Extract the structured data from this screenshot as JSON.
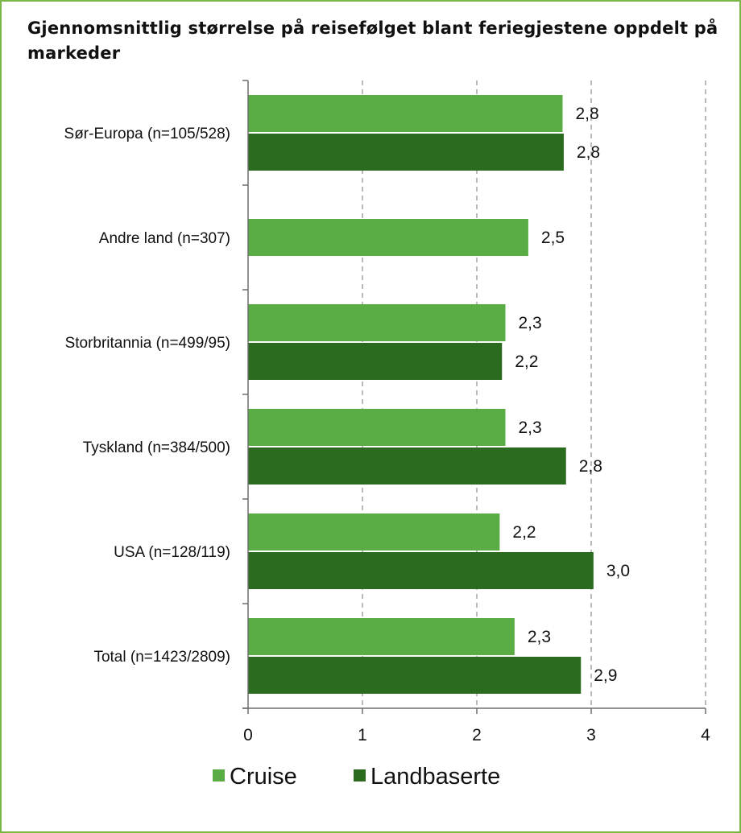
{
  "chart_data": {
    "type": "bar",
    "orientation": "horizontal",
    "title": "Gjennomsnittlig størrelse på reisefølget blant feriegjestene oppdelt på markeder",
    "categories": [
      "Sør-Europa (n=105/528)",
      "Andre land (n=307)",
      "Storbritannia (n=499/95)",
      "Tyskland (n=384/500)",
      "USA (n=128/119)",
      "Total (n=1423/2809)"
    ],
    "series": [
      {
        "name": "Cruise",
        "color": "#5aac44",
        "values": [
          2.75,
          2.45,
          2.25,
          2.25,
          2.2,
          2.33
        ],
        "labels": [
          "2,8",
          "2,5",
          "2,3",
          "2,3",
          "2,2",
          "2,3"
        ]
      },
      {
        "name": "Landbaserte",
        "color": "#2b6b1e",
        "values": [
          2.76,
          null,
          2.22,
          2.78,
          3.02,
          2.91
        ],
        "labels": [
          "2,8",
          "",
          "2,2",
          "2,8",
          "3,0",
          "2,9"
        ]
      }
    ],
    "xlim": [
      0,
      4
    ],
    "xticks": [
      "0",
      "1",
      "2",
      "3",
      "4"
    ],
    "grid": "vertical dashed",
    "legend": "bottom"
  }
}
